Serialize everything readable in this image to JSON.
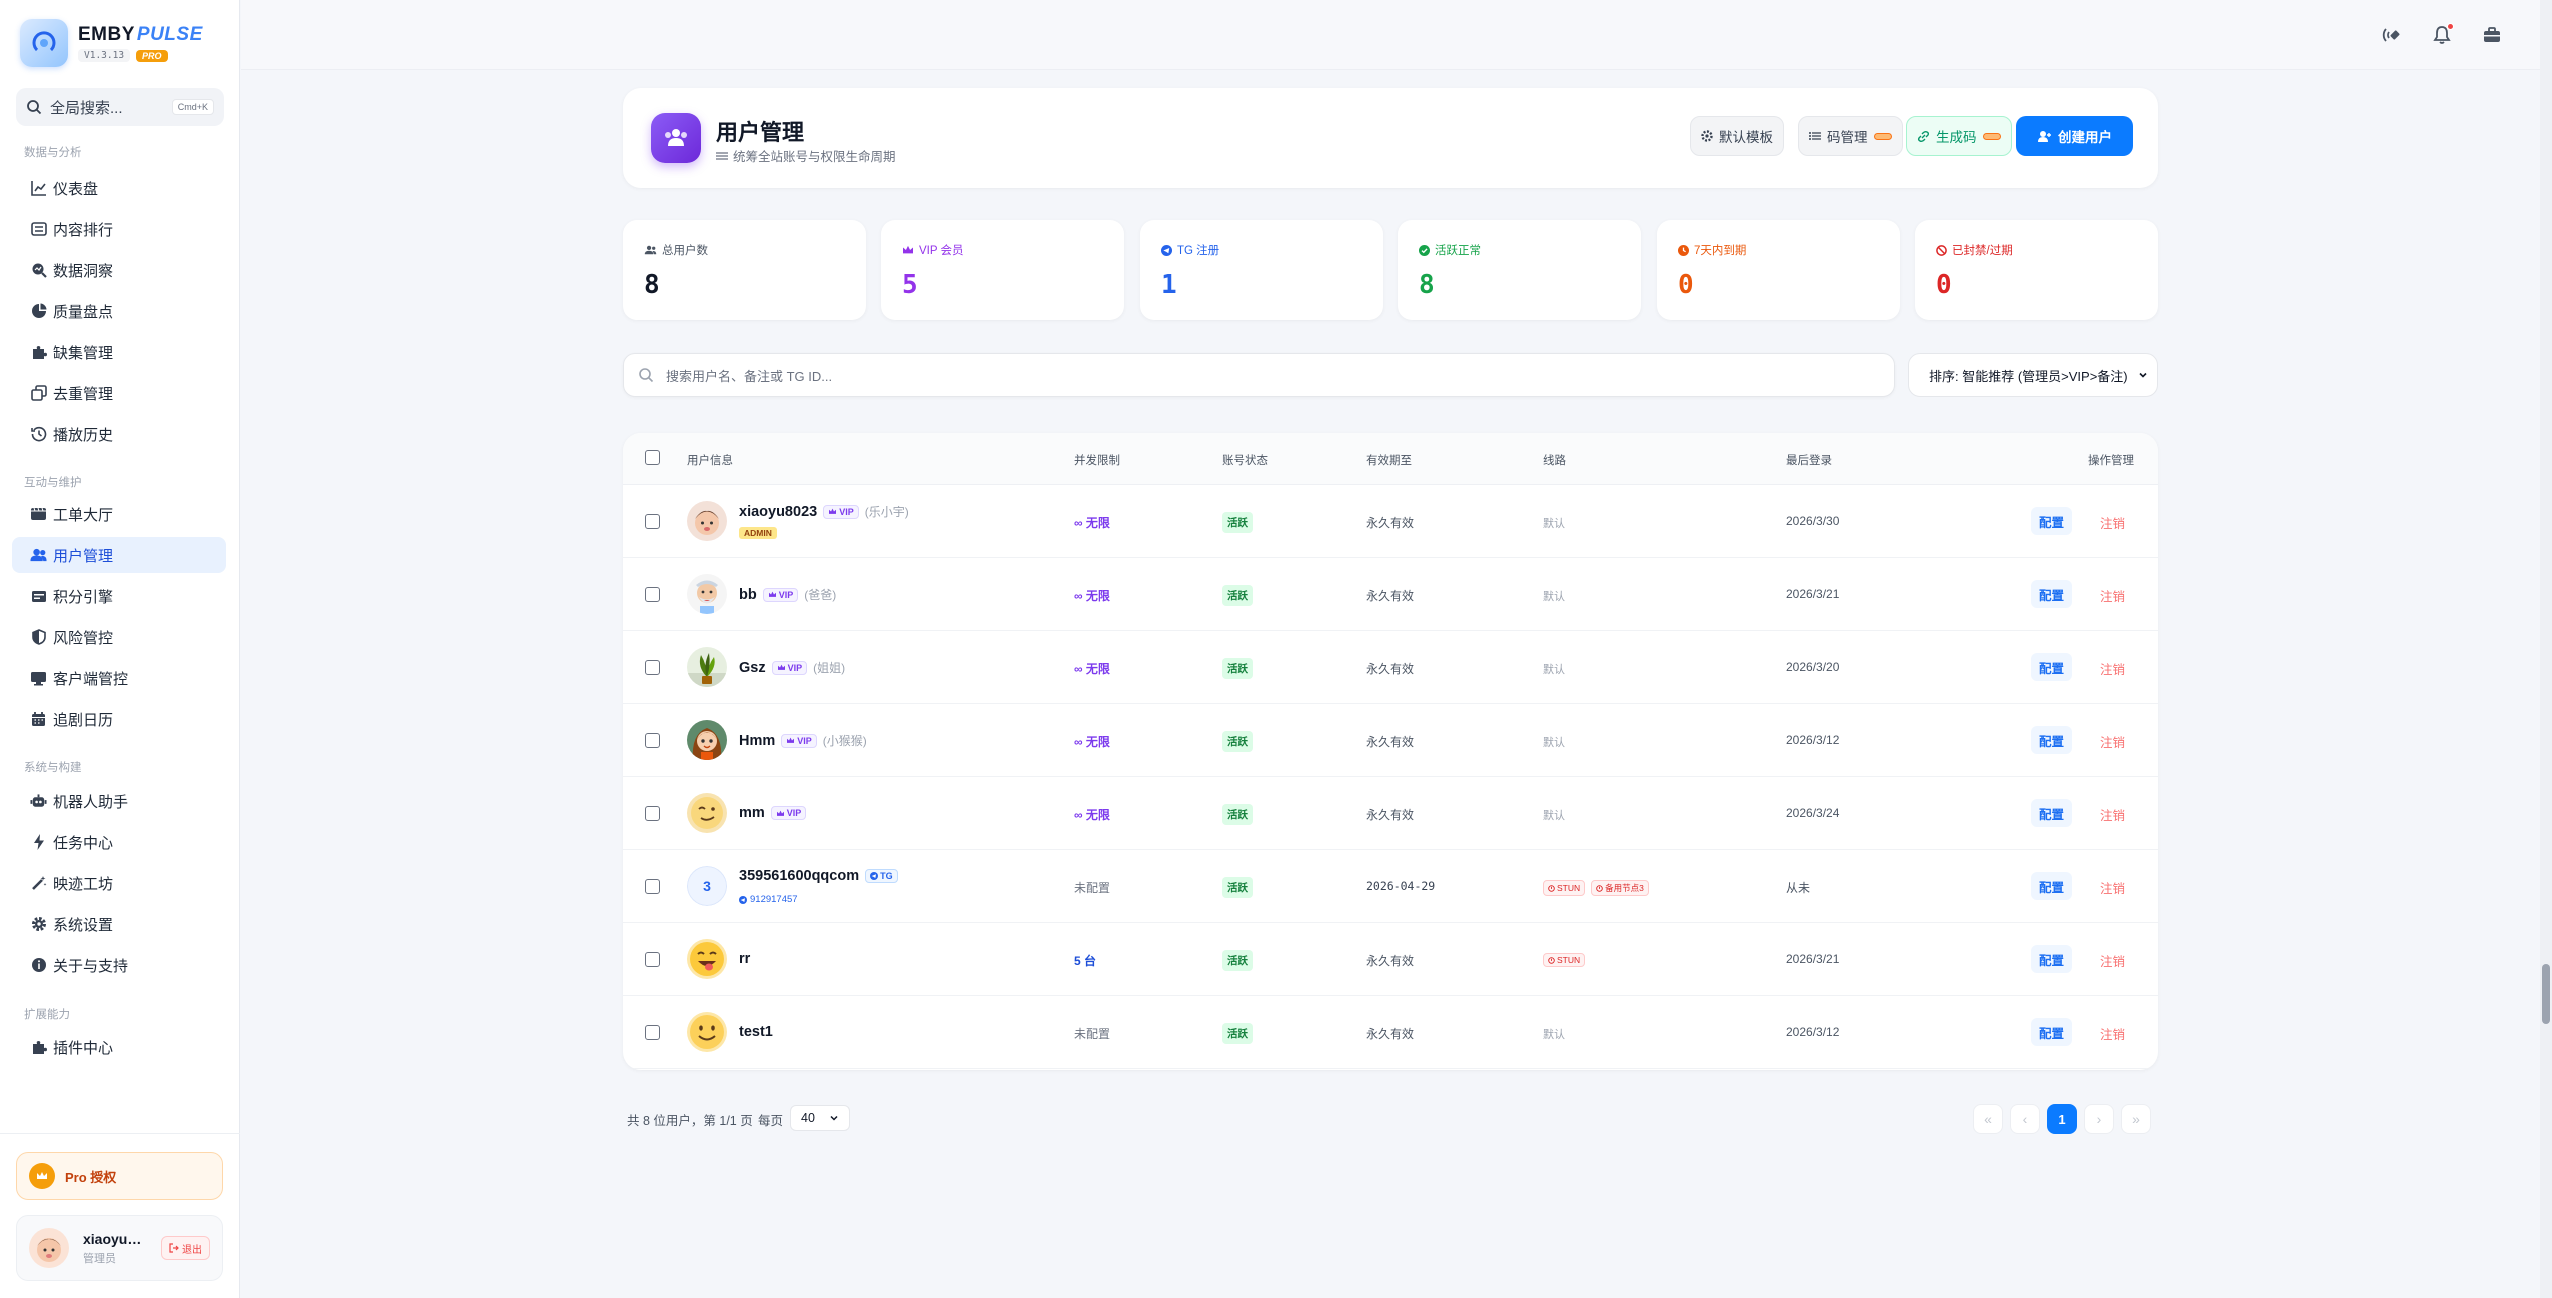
{
  "brand": {
    "name": "EMBY",
    "name_accent": "PULSE",
    "version": "V1.3.13",
    "badge": "PRO"
  },
  "sidebar": {
    "search": {
      "label": "全局搜索...",
      "shortcut": "Cmd+K"
    },
    "groups": [
      {
        "title": "数据与分析",
        "items": [
          {
            "label": "仪表盘",
            "icon": "chart-line-icon"
          },
          {
            "label": "内容排行",
            "icon": "ranking-icon"
          },
          {
            "label": "数据洞察",
            "icon": "magnify-chart-icon"
          },
          {
            "label": "质量盘点",
            "icon": "pie-chart-icon"
          },
          {
            "label": "缺集管理",
            "icon": "puzzle-icon"
          },
          {
            "label": "去重管理",
            "icon": "copy-icon"
          },
          {
            "label": "播放历史",
            "icon": "history-icon"
          }
        ]
      },
      {
        "title": "互动与维护",
        "items": [
          {
            "label": "工单大厅",
            "icon": "ticket-icon"
          },
          {
            "label": "用户管理",
            "icon": "users-icon",
            "active": true
          },
          {
            "label": "积分引擎",
            "icon": "points-icon"
          },
          {
            "label": "风险管控",
            "icon": "shield-icon"
          },
          {
            "label": "客户端管控",
            "icon": "desktop-icon"
          },
          {
            "label": "追剧日历",
            "icon": "calendar-icon"
          }
        ]
      },
      {
        "title": "系统与构建",
        "items": [
          {
            "label": "机器人助手",
            "icon": "robot-icon"
          },
          {
            "label": "任务中心",
            "icon": "bolt-icon"
          },
          {
            "label": "映迹工坊",
            "icon": "wand-icon"
          },
          {
            "label": "系统设置",
            "icon": "gear-icon"
          },
          {
            "label": "关于与支持",
            "icon": "info-icon"
          }
        ]
      },
      {
        "title": "扩展能力",
        "items": [
          {
            "label": "插件中心",
            "icon": "puzzle-icon"
          }
        ]
      }
    ],
    "pro_card": "Pro 授权",
    "user": {
      "name": "xiaoyu…",
      "role": "管理员",
      "logout": "退出"
    }
  },
  "header": {
    "title": "用户管理",
    "subtitle": "统筹全站账号与权限生命周期",
    "buttons": {
      "template": "默认模板",
      "codes": "码管理",
      "gen": "生成码",
      "create": "创建用户"
    }
  },
  "stats": [
    {
      "label": "总用户数",
      "value": "8",
      "color": "#111827",
      "label_color": "#4b5563",
      "icon": "users-icon"
    },
    {
      "label": "VIP 会员",
      "value": "5",
      "color": "#9333ea",
      "label_color": "#9333ea",
      "icon": "crown-icon"
    },
    {
      "label": "TG 注册",
      "value": "1",
      "color": "#2563eb",
      "label_color": "#2563eb",
      "icon": "telegram-icon"
    },
    {
      "label": "活跃正常",
      "value": "8",
      "color": "#16a34a",
      "label_color": "#16a34a",
      "icon": "check-circle-icon"
    },
    {
      "label": "7天内到期",
      "value": "0",
      "color": "#ea580c",
      "label_color": "#ea580c",
      "icon": "clock-icon"
    },
    {
      "label": "已封禁/过期",
      "value": "0",
      "color": "#dc2626",
      "label_color": "#dc2626",
      "icon": "ban-icon"
    }
  ],
  "search": {
    "placeholder": "搜索用户名、备注或 TG ID...",
    "sort": "排序: 智能推荐 (管理员>VIP>备注)"
  },
  "table": {
    "headers": [
      "用户信息",
      "并发限制",
      "账号状态",
      "有效期至",
      "线路",
      "最后登录",
      "操作管理"
    ],
    "rows": [
      {
        "name": "xiaoyu8023",
        "vip": "VIP",
        "note": "(乐小宇)",
        "admin": "ADMIN",
        "concurrency": "∞ 无限",
        "conc_type": "inf",
        "status": "活跃",
        "expire": "永久有效",
        "line": "默认",
        "last": "2026/3/30",
        "avatar": "baby"
      },
      {
        "name": "bb",
        "vip": "VIP",
        "note": "(爸爸)",
        "concurrency": "∞ 无限",
        "conc_type": "inf",
        "status": "活跃",
        "expire": "永久有效",
        "line": "默认",
        "last": "2026/3/21",
        "avatar": "grandpa"
      },
      {
        "name": "Gsz",
        "vip": "VIP",
        "note": "(姐姐)",
        "concurrency": "∞ 无限",
        "conc_type": "inf",
        "status": "活跃",
        "expire": "永久有效",
        "line": "默认",
        "last": "2026/3/20",
        "avatar": "plant"
      },
      {
        "name": "Hmm",
        "vip": "VIP",
        "note": "(小猴猴)",
        "concurrency": "∞ 无限",
        "conc_type": "inf",
        "status": "活跃",
        "expire": "永久有效",
        "line": "默认",
        "last": "2026/3/12",
        "avatar": "girl"
      },
      {
        "name": "mm",
        "vip": "VIP",
        "concurrency": "∞ 无限",
        "conc_type": "inf",
        "status": "活跃",
        "expire": "永久有效",
        "line": "默认",
        "last": "2026/3/24",
        "avatar": "wink"
      },
      {
        "name": "359561600qqcom",
        "tg": "TG",
        "tg_id": "912917457",
        "concurrency": "未配置",
        "conc_type": "none",
        "status": "活跃",
        "expire": "2026-04-29",
        "expire_mono": true,
        "line_tags": [
          "STUN",
          "备用节点3"
        ],
        "last": "从未",
        "avatar": "letter",
        "avatar_letter": "3"
      },
      {
        "name": "rr",
        "concurrency": "5 台",
        "conc_type": "num",
        "status": "活跃",
        "expire": "永久有效",
        "line_tags": [
          "STUN"
        ],
        "last": "2026/3/21",
        "avatar": "tongue"
      },
      {
        "name": "test1",
        "concurrency": "未配置",
        "conc_type": "none",
        "status": "活跃",
        "expire": "永久有效",
        "line": "默认",
        "last": "2026/3/12",
        "avatar": "smile"
      }
    ],
    "action_config": "配置",
    "action_delete": "注销"
  },
  "pagination": {
    "info": "共 8 位用户，第 1/1 页",
    "per_page_label": "每页",
    "per_page": "40",
    "current": "1"
  }
}
